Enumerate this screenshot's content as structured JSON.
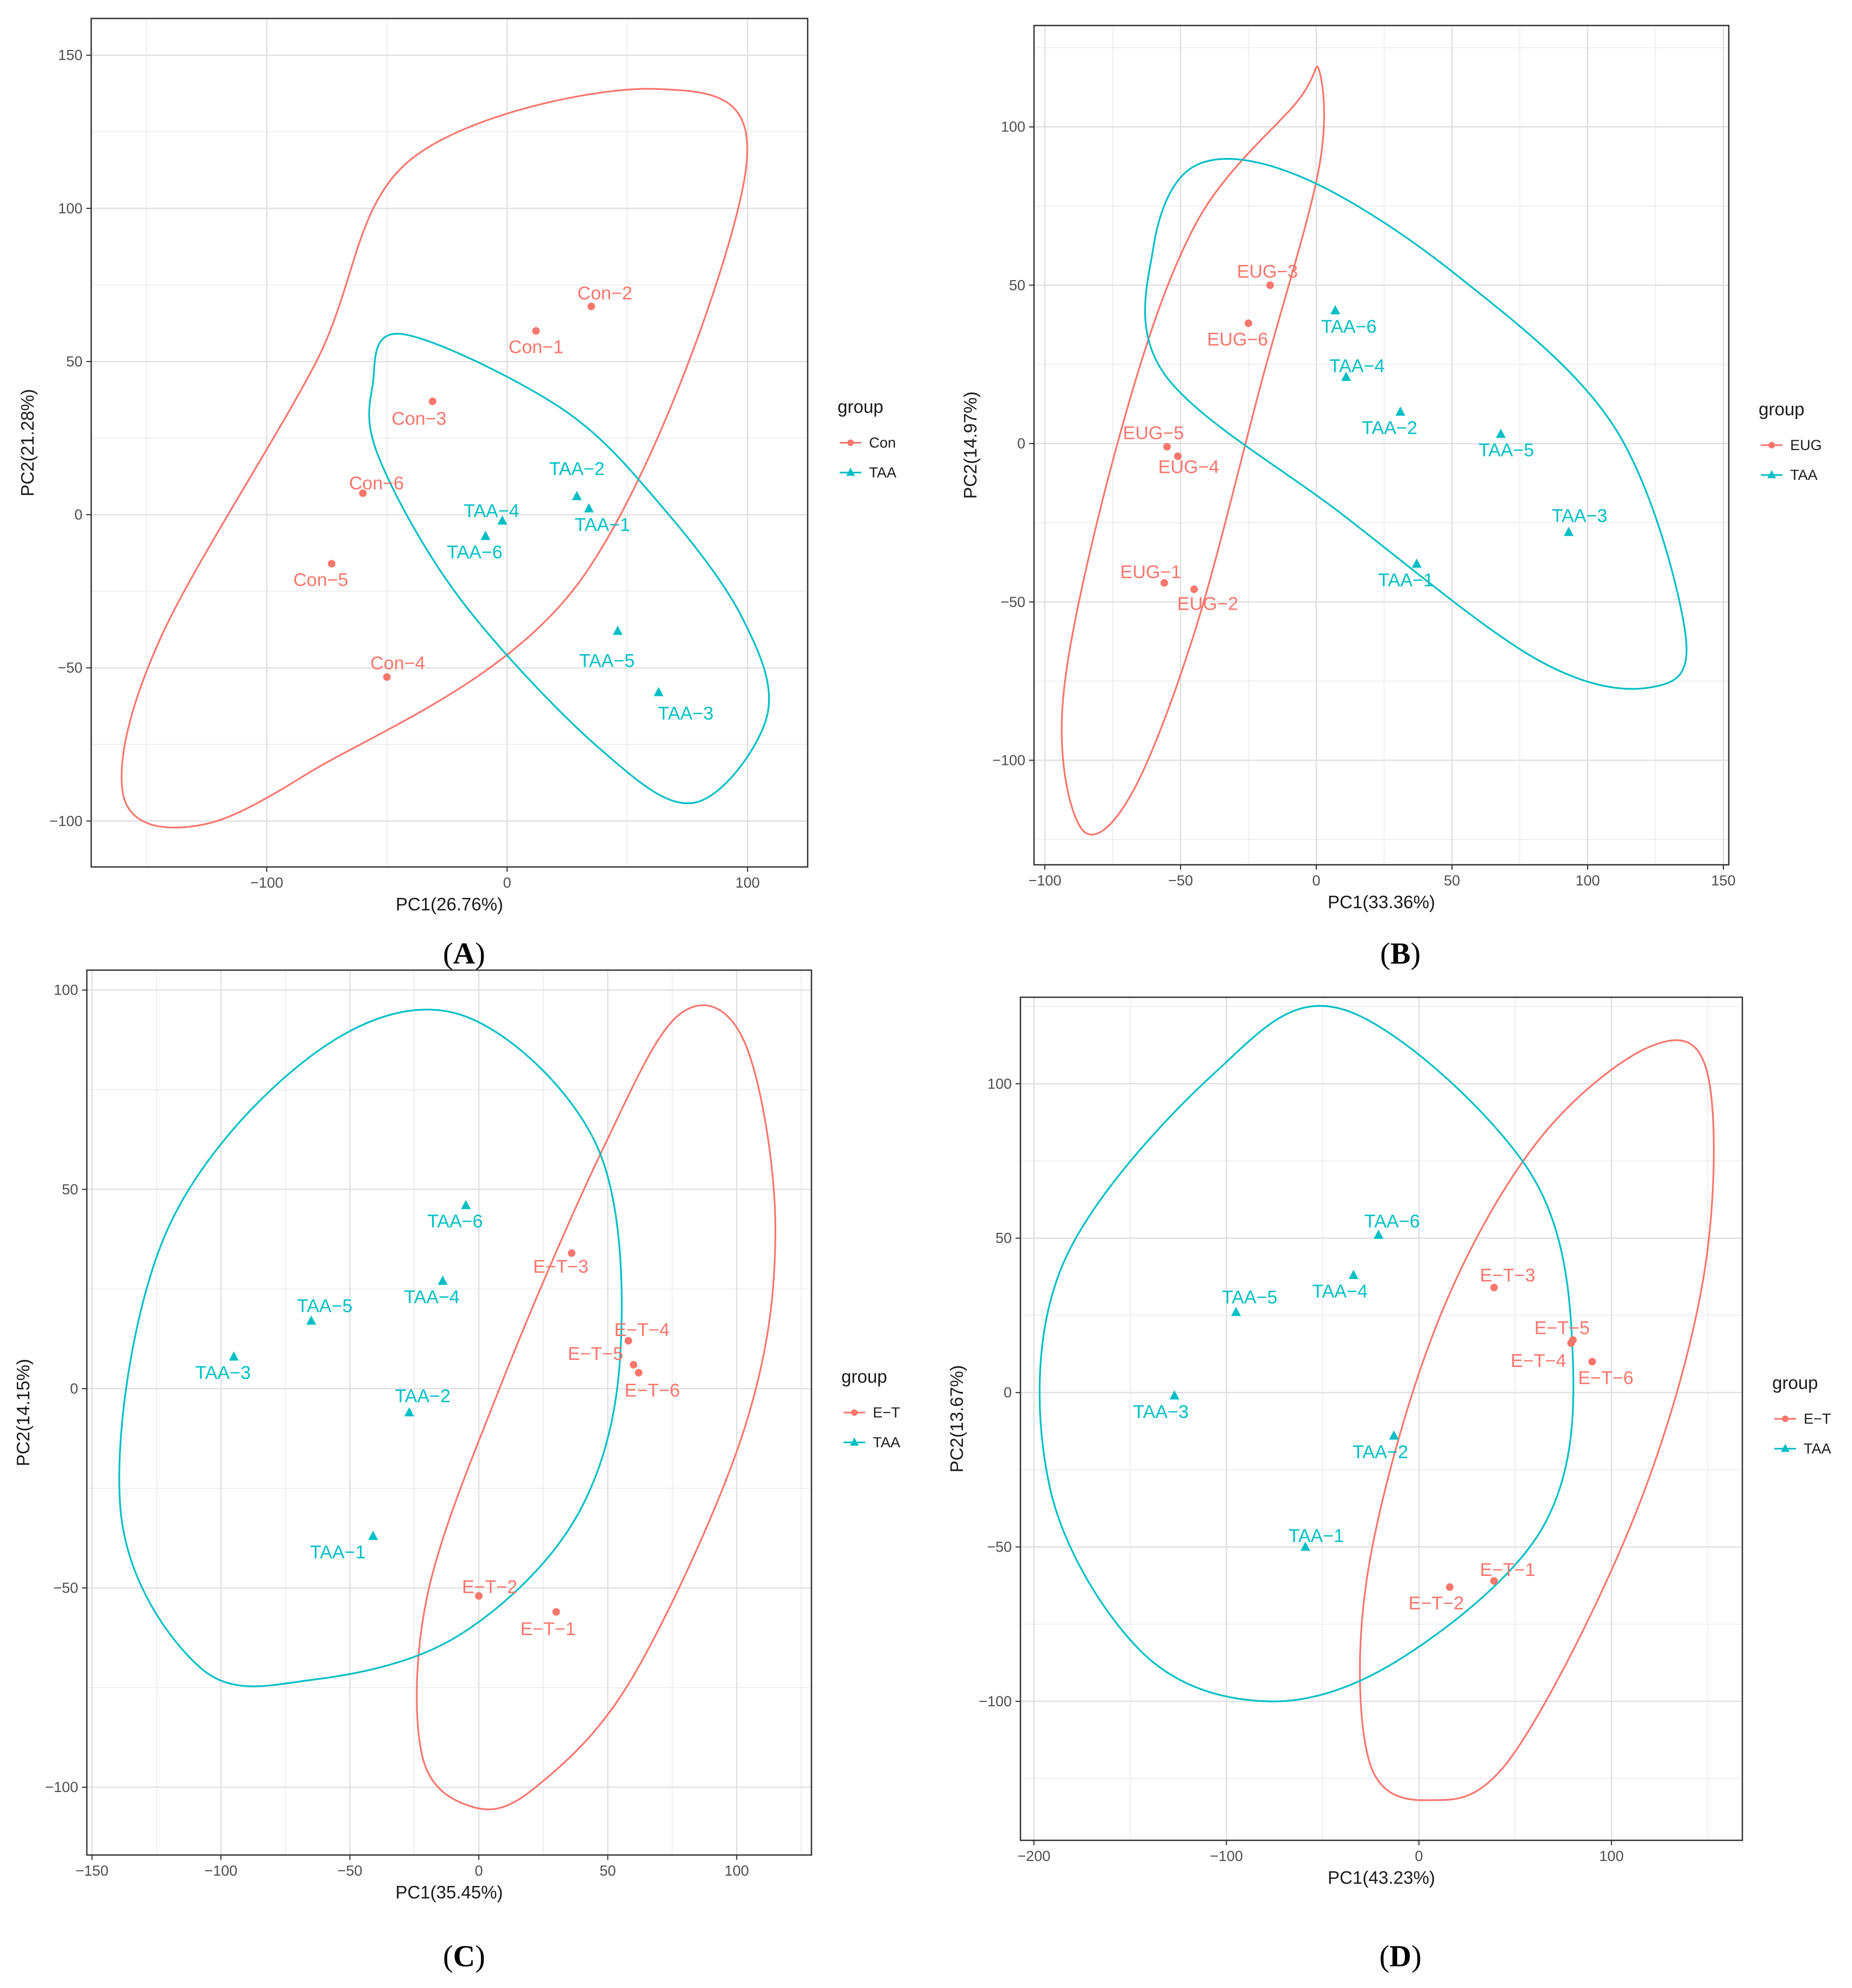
{
  "colors": {
    "red": "#F8766D",
    "teal": "#00BFC4",
    "grid": "#ebebeb",
    "frame": "#333333"
  },
  "chart_data": [
    {
      "type": "scatter",
      "panel": "(A)",
      "xlabel": "PC1(26.76%)",
      "ylabel": "PC2(21.28%)",
      "xlim": [
        -173,
        125
      ],
      "ylim": [
        -115,
        162
      ],
      "xticks": [
        -100,
        0,
        100
      ],
      "yticks": [
        -100,
        -50,
        0,
        50,
        100,
        150
      ],
      "legend": {
        "title": "group",
        "entries": [
          "Con",
          "TAA"
        ],
        "position": "right"
      },
      "series": [
        {
          "name": "Con",
          "color": "red",
          "marker": "circle",
          "points": [
            {
              "label": "Con-1",
              "x": 12,
              "y": 60
            },
            {
              "label": "Con-2",
              "x": 35,
              "y": 68
            },
            {
              "label": "Con-3",
              "x": -31,
              "y": 37
            },
            {
              "label": "Con-4",
              "x": -50,
              "y": -53
            },
            {
              "label": "Con-5",
              "x": -73,
              "y": -16
            },
            {
              "label": "Con-6",
              "x": -60,
              "y": 7
            }
          ],
          "ellipse": {
            "points": [
              [
                -40,
                116
              ],
              [
                62,
                139
              ],
              [
                99,
                111
              ],
              [
                30,
                -22
              ],
              [
                -84,
                -85
              ],
              [
                -134,
                -102
              ],
              [
                -160,
                -90
              ],
              [
                -144,
                -40
              ],
              [
                -80,
                49
              ]
            ]
          }
        },
        {
          "name": "TAA",
          "color": "teal",
          "marker": "triangle",
          "points": [
            {
              "label": "TAA-1",
              "x": 34,
              "y": 2
            },
            {
              "label": "TAA-2",
              "x": 29,
              "y": 6
            },
            {
              "label": "TAA-3",
              "x": 63,
              "y": -58
            },
            {
              "label": "TAA-4",
              "x": -2,
              "y": -2
            },
            {
              "label": "TAA-5",
              "x": 46,
              "y": -38
            },
            {
              "label": "TAA-6",
              "x": -9,
              "y": -7
            }
          ],
          "ellipse": {
            "points": [
              [
                -44,
                59
              ],
              [
                -56,
                42
              ],
              [
                -53,
                18
              ],
              [
                -19,
                -28
              ],
              [
                38,
                -76
              ],
              [
                78,
                -94
              ],
              [
                108,
                -66
              ],
              [
                98,
                -34
              ],
              [
                64,
                3
              ],
              [
                22,
                35
              ]
            ]
          }
        }
      ]
    },
    {
      "type": "scatter",
      "panel": "(B)",
      "xlabel": "PC1(33.36%)",
      "ylabel": "PC2(14.97%)",
      "xlim": [
        -104,
        152
      ],
      "ylim": [
        -133,
        132
      ],
      "xticks": [
        -100,
        -50,
        0,
        50,
        100,
        150
      ],
      "yticks": [
        -100,
        -50,
        0,
        50,
        100
      ],
      "legend": {
        "title": "group",
        "entries": [
          "EUG",
          "TAA"
        ],
        "position": "right"
      },
      "series": [
        {
          "name": "EUG",
          "color": "red",
          "marker": "circle",
          "points": [
            {
              "label": "EUG-1",
              "x": -56,
              "y": -44
            },
            {
              "label": "EUG-2",
              "x": -45,
              "y": -46
            },
            {
              "label": "EUG-3",
              "x": -17,
              "y": 50
            },
            {
              "label": "EUG-4",
              "x": -51,
              "y": -4
            },
            {
              "label": "EUG-5",
              "x": -55,
              "y": -1
            },
            {
              "label": "EUG-6",
              "x": -25,
              "y": 38
            }
          ],
          "ellipse": {
            "points": [
              [
                -7,
                108
              ],
              [
                1,
                118
              ],
              [
                1,
                87
              ],
              [
                -20,
                20
              ],
              [
                -45,
                -60
              ],
              [
                -69,
                -112
              ],
              [
                -87,
                -121
              ],
              [
                -93,
                -78
              ],
              [
                -71,
                7
              ],
              [
                -44,
                70
              ]
            ]
          }
        },
        {
          "name": "TAA",
          "color": "teal",
          "marker": "triangle",
          "points": [
            {
              "label": "TAA-1",
              "x": 37,
              "y": -38
            },
            {
              "label": "TAA-2",
              "x": 31,
              "y": 10
            },
            {
              "label": "TAA-3",
              "x": 93,
              "y": -28
            },
            {
              "label": "TAA-4",
              "x": 11,
              "y": 21
            },
            {
              "label": "TAA-5",
              "x": 68,
              "y": 3
            },
            {
              "label": "TAA-6",
              "x": 7,
              "y": 42
            }
          ],
          "ellipse": {
            "points": [
              [
                -44,
                88
              ],
              [
                -60,
                62
              ],
              [
                -56,
                22
              ],
              [
                9,
                -22
              ],
              [
                81,
                -68
              ],
              [
                123,
                -77
              ],
              [
                136,
                -60
              ],
              [
                110,
                5
              ],
              [
                52,
                53
              ],
              [
                -5,
                84
              ]
            ]
          }
        }
      ]
    },
    {
      "type": "scatter",
      "panel": "(C)",
      "xlabel": "PC1(35.45%)",
      "ylabel": "PC2(14.15%)",
      "xlim": [
        -152,
        129
      ],
      "ylim": [
        -117,
        105
      ],
      "xticks": [
        -150,
        -100,
        -50,
        0,
        50,
        100
      ],
      "yticks": [
        -100,
        -50,
        0,
        50,
        100
      ],
      "legend": {
        "title": "group",
        "entries": [
          "E-T",
          "TAA"
        ],
        "position": "right"
      },
      "series": [
        {
          "name": "E-T",
          "color": "red",
          "marker": "circle",
          "points": [
            {
              "label": "E-T-1",
              "x": 30,
              "y": -56
            },
            {
              "label": "E-T-2",
              "x": 0,
              "y": -52
            },
            {
              "label": "E-T-3",
              "x": 36,
              "y": 34
            },
            {
              "label": "E-T-4",
              "x": 58,
              "y": 12
            },
            {
              "label": "E-T-5",
              "x": 60,
              "y": 6
            },
            {
              "label": "E-T-6",
              "x": 62,
              "y": 4
            }
          ],
          "ellipse": {
            "points": [
              [
                78,
                94
              ],
              [
                103,
                87
              ],
              [
                115,
                40
              ],
              [
                103,
                -10
              ],
              [
                60,
                -72
              ],
              [
                22,
                -100
              ],
              [
                -2,
                -105
              ],
              [
                -22,
                -92
              ],
              [
                -20,
                -52
              ],
              [
                8,
                0
              ],
              [
                48,
                60
              ]
            ]
          }
        },
        {
          "name": "TAA",
          "color": "teal",
          "marker": "triangle",
          "points": [
            {
              "label": "TAA-1",
              "x": -41,
              "y": -37
            },
            {
              "label": "TAA-2",
              "x": -27,
              "y": -6
            },
            {
              "label": "TAA-3",
              "x": -95,
              "y": 8
            },
            {
              "label": "TAA-4",
              "x": -14,
              "y": 27
            },
            {
              "label": "TAA-5",
              "x": -65,
              "y": 17
            },
            {
              "label": "TAA-6",
              "x": -5,
              "y": 46
            }
          ],
          "ellipse": {
            "points": [
              [
                -8,
                94
              ],
              [
                -66,
                83
              ],
              [
                -122,
                38
              ],
              [
                -139,
                -30
              ],
              [
                -108,
                -70
              ],
              [
                -64,
                -73
              ],
              [
                -8,
                -62
              ],
              [
                38,
                -32
              ],
              [
                55,
                10
              ],
              [
                45,
                62
              ]
            ]
          }
        }
      ]
    },
    {
      "type": "scatter",
      "panel": "(D)",
      "xlabel": "PC1(43.23%)",
      "ylabel": "PC2(13.67%)",
      "xlim": [
        -207,
        168
      ],
      "ylim": [
        -145,
        128
      ],
      "xticks": [
        -200,
        -100,
        0,
        100
      ],
      "yticks": [
        -100,
        -50,
        0,
        50,
        100
      ],
      "legend": {
        "title": "group",
        "entries": [
          "E-T",
          "TAA"
        ],
        "position": "right"
      },
      "series": [
        {
          "name": "E-T",
          "color": "red",
          "marker": "circle",
          "points": [
            {
              "label": "E-T-1",
              "x": 39,
              "y": -61
            },
            {
              "label": "E-T-2",
              "x": 16,
              "y": -63
            },
            {
              "label": "E-T-3",
              "x": 39,
              "y": 34
            },
            {
              "label": "E-T-4",
              "x": 79,
              "y": 16
            },
            {
              "label": "E-T-5",
              "x": 80,
              "y": 17
            },
            {
              "label": "E-T-6",
              "x": 90,
              "y": 10
            }
          ],
          "ellipse": {
            "points": [
              [
                120,
                112
              ],
              [
                150,
                103
              ],
              [
                148,
                38
              ],
              [
                112,
                -40
              ],
              [
                48,
                -118
              ],
              [
                5,
                -132
              ],
              [
                -26,
                -119
              ],
              [
                -27,
                -60
              ],
              [
                8,
                20
              ],
              [
                60,
                80
              ]
            ]
          }
        },
        {
          "name": "TAA",
          "color": "teal",
          "marker": "triangle",
          "points": [
            {
              "label": "TAA-1",
              "x": -59,
              "y": -50
            },
            {
              "label": "TAA-2",
              "x": -13,
              "y": -14
            },
            {
              "label": "TAA-3",
              "x": -127,
              "y": -1
            },
            {
              "label": "TAA-4",
              "x": -34,
              "y": 38
            },
            {
              "label": "TAA-5",
              "x": -95,
              "y": 26
            },
            {
              "label": "TAA-6",
              "x": -21,
              "y": 51
            }
          ],
          "ellipse": {
            "points": [
              [
                -39,
                124
              ],
              [
                -107,
                103
              ],
              [
                -186,
                40
              ],
              [
                -192,
                -30
              ],
              [
                -144,
                -84
              ],
              [
                -78,
                -100
              ],
              [
                -9,
                -86
              ],
              [
                64,
                -44
              ],
              [
                80,
                10
              ],
              [
                57,
                72
              ]
            ]
          }
        }
      ]
    }
  ]
}
